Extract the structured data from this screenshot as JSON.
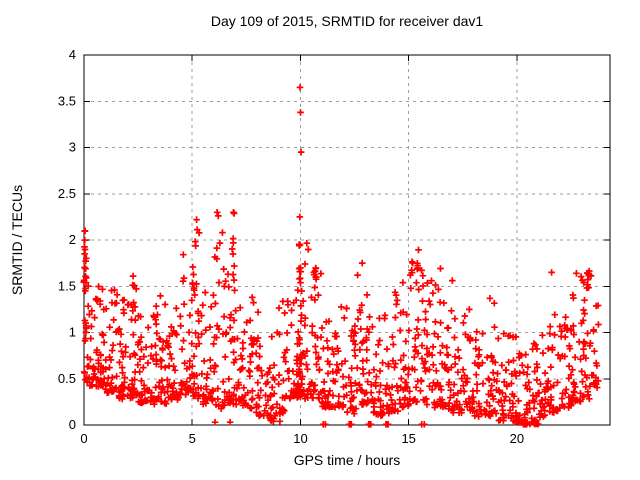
{
  "chart_data": {
    "type": "scatter",
    "title": "Day 109 of 2015, SRMTID for receiver dav1",
    "xlabel": "GPS time / hours",
    "ylabel": "SRMTID / TECUs",
    "xlim": [
      0,
      24.3
    ],
    "ylim": [
      0,
      4
    ],
    "xticks": [
      0,
      5,
      10,
      15,
      20
    ],
    "yticks": [
      0,
      0.5,
      1,
      1.5,
      2,
      2.5,
      3,
      3.5,
      4
    ],
    "grid": true,
    "legend": "none",
    "marker": "+",
    "marker_color": "#ff0000",
    "grid_color": "#9e9e9e",
    "axis_color": "#000000",
    "background_color": "#ffffff",
    "seed": 109,
    "scatter_bins": [
      [
        0.0,
        30,
        0.45,
        1.7
      ],
      [
        0.5,
        38,
        0.4,
        1.55
      ],
      [
        1.0,
        34,
        0.35,
        1.45
      ],
      [
        1.5,
        34,
        0.3,
        1.4
      ],
      [
        2.0,
        34,
        0.3,
        1.65
      ],
      [
        2.5,
        32,
        0.25,
        1.2
      ],
      [
        3.0,
        32,
        0.25,
        1.3
      ],
      [
        3.5,
        32,
        0.25,
        1.4
      ],
      [
        4.0,
        30,
        0.3,
        1.45
      ],
      [
        4.5,
        30,
        0.35,
        1.9
      ],
      [
        5.0,
        34,
        0.3,
        2.25
      ],
      [
        5.5,
        30,
        0.25,
        1.5
      ],
      [
        6.0,
        30,
        0.2,
        2.3
      ],
      [
        6.5,
        30,
        0.25,
        1.8
      ],
      [
        7.0,
        30,
        0.2,
        1.3
      ],
      [
        7.5,
        28,
        0.15,
        1.55
      ],
      [
        8.0,
        26,
        0.1,
        1.2
      ],
      [
        8.5,
        24,
        0.05,
        1.1
      ],
      [
        9.0,
        26,
        0.15,
        1.35
      ],
      [
        9.5,
        30,
        0.3,
        1.8
      ],
      [
        10.0,
        32,
        0.3,
        2.0
      ],
      [
        10.5,
        30,
        0.3,
        1.75
      ],
      [
        11.0,
        30,
        0.2,
        1.5
      ],
      [
        11.5,
        28,
        0.2,
        1.45
      ],
      [
        12.0,
        28,
        0.15,
        1.3
      ],
      [
        12.5,
        30,
        0.2,
        1.75
      ],
      [
        13.0,
        28,
        0.15,
        1.4
      ],
      [
        13.5,
        28,
        0.1,
        1.3
      ],
      [
        14.0,
        28,
        0.15,
        1.45
      ],
      [
        14.5,
        30,
        0.2,
        1.55
      ],
      [
        15.0,
        30,
        0.25,
        1.95
      ],
      [
        15.5,
        30,
        0.25,
        1.8
      ],
      [
        16.0,
        30,
        0.2,
        1.75
      ],
      [
        16.5,
        28,
        0.2,
        1.5
      ],
      [
        17.0,
        28,
        0.15,
        1.55
      ],
      [
        17.5,
        28,
        0.15,
        1.3
      ],
      [
        18.0,
        26,
        0.1,
        1.4
      ],
      [
        18.5,
        26,
        0.1,
        1.3
      ],
      [
        19.0,
        26,
        0.05,
        1.45
      ],
      [
        19.5,
        28,
        0.05,
        1.0
      ],
      [
        20.0,
        30,
        0.02,
        0.85
      ],
      [
        20.5,
        30,
        0.02,
        0.9
      ],
      [
        21.0,
        28,
        0.1,
        1.0
      ],
      [
        21.5,
        28,
        0.15,
        1.3
      ],
      [
        22.0,
        28,
        0.2,
        1.4
      ],
      [
        22.5,
        28,
        0.25,
        1.75
      ],
      [
        23.0,
        28,
        0.3,
        1.65
      ],
      [
        23.5,
        16,
        0.4,
        1.6,
        0.3
      ]
    ],
    "columns": [
      [
        0.05,
        22,
        0.85,
        2.1
      ],
      [
        2.3,
        5,
        1.2,
        1.65
      ],
      [
        5.05,
        6,
        1.45,
        1.75
      ],
      [
        6.9,
        8,
        1.0,
        2.3
      ],
      [
        9.9,
        10,
        0.4,
        1.6
      ],
      [
        10.0,
        16,
        0.35,
        2.0
      ],
      [
        10.7,
        8,
        1.35,
        1.75
      ],
      [
        15.45,
        5,
        1.4,
        1.9
      ],
      [
        23.3,
        8,
        1.48,
        1.67
      ]
    ],
    "outliers": [
      [
        9.98,
        3.65
      ],
      [
        10.0,
        3.38
      ],
      [
        10.03,
        2.95
      ],
      [
        9.97,
        2.25
      ],
      [
        0.05,
        2.1
      ],
      [
        5.2,
        2.22
      ],
      [
        6.15,
        2.3
      ],
      [
        6.9,
        2.3
      ],
      [
        12.85,
        1.75
      ],
      [
        18.75,
        1.37
      ],
      [
        21.6,
        1.65
      ],
      [
        22.75,
        1.64
      ]
    ],
    "zero_line_x": [
      11.05,
      11.15,
      12.25,
      12.3,
      12.35,
      13.15,
      13.2,
      13.25,
      13.95,
      14.0,
      14.05,
      15.6,
      15.72,
      20.3,
      20.38,
      20.45
    ],
    "near_zero_points": [
      [
        6.05,
        0.03
      ],
      [
        6.75,
        0.03
      ],
      [
        8.75,
        0.04
      ],
      [
        9.05,
        0.04
      ]
    ]
  }
}
